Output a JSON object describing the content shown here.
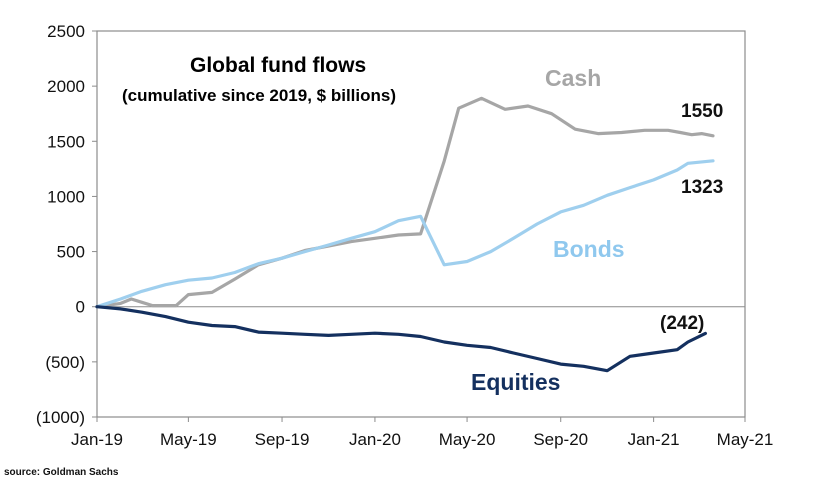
{
  "chart_data": {
    "type": "line",
    "title": "Global fund flows",
    "subtitle": "(cumulative since 2019, $ billions)",
    "source": "source: Goldman Sachs",
    "xlabel": "",
    "ylabel": "",
    "x_range": [
      "2019-01",
      "2021-05"
    ],
    "ylim": [
      -1000,
      2500
    ],
    "y_ticks": [
      2500,
      2000,
      1500,
      1000,
      500,
      0,
      -500,
      -1000
    ],
    "y_tick_labels": [
      "2500",
      "2000",
      "1500",
      "1000",
      "500",
      "0",
      "(500)",
      "(1000)"
    ],
    "x_tick_labels": [
      "Jan-19",
      "May-19",
      "Sep-19",
      "Jan-20",
      "May-20",
      "Sep-20",
      "Jan-21",
      "May-21"
    ],
    "grid": false,
    "legend": "none (series labelled directly on chart)",
    "series": [
      {
        "name": "Cash",
        "color": "#a6a6a6",
        "end_label": "1550",
        "points": [
          [
            "2019-01-01",
            0
          ],
          [
            "2019-02-01",
            30
          ],
          [
            "2019-02-15",
            70
          ],
          [
            "2019-03-01",
            40
          ],
          [
            "2019-03-15",
            10
          ],
          [
            "2019-04-15",
            10
          ],
          [
            "2019-05-01",
            110
          ],
          [
            "2019-06-01",
            130
          ],
          [
            "2019-07-01",
            250
          ],
          [
            "2019-08-01",
            380
          ],
          [
            "2019-09-01",
            440
          ],
          [
            "2019-10-01",
            510
          ],
          [
            "2019-11-01",
            550
          ],
          [
            "2019-12-01",
            590
          ],
          [
            "2020-01-01",
            620
          ],
          [
            "2020-02-01",
            650
          ],
          [
            "2020-03-01",
            660
          ],
          [
            "2020-04-01",
            1320
          ],
          [
            "2020-04-20",
            1800
          ],
          [
            "2020-05-20",
            1890
          ],
          [
            "2020-06-20",
            1790
          ],
          [
            "2020-07-20",
            1820
          ],
          [
            "2020-08-20",
            1750
          ],
          [
            "2020-09-20",
            1610
          ],
          [
            "2020-10-20",
            1570
          ],
          [
            "2020-11-20",
            1580
          ],
          [
            "2020-12-20",
            1600
          ],
          [
            "2021-01-20",
            1600
          ],
          [
            "2021-02-05",
            1580
          ],
          [
            "2021-02-20",
            1560
          ],
          [
            "2021-03-05",
            1570
          ],
          [
            "2021-03-20",
            1550
          ]
        ]
      },
      {
        "name": "Bonds",
        "color": "#9fcfee",
        "end_label": "1323",
        "points": [
          [
            "2019-01-01",
            0
          ],
          [
            "2019-02-01",
            70
          ],
          [
            "2019-03-01",
            140
          ],
          [
            "2019-04-01",
            200
          ],
          [
            "2019-05-01",
            240
          ],
          [
            "2019-06-01",
            260
          ],
          [
            "2019-07-01",
            310
          ],
          [
            "2019-08-01",
            390
          ],
          [
            "2019-09-01",
            440
          ],
          [
            "2019-10-01",
            500
          ],
          [
            "2019-11-01",
            560
          ],
          [
            "2019-12-01",
            620
          ],
          [
            "2020-01-01",
            680
          ],
          [
            "2020-02-01",
            780
          ],
          [
            "2020-03-01",
            820
          ],
          [
            "2020-04-01",
            380
          ],
          [
            "2020-05-01",
            410
          ],
          [
            "2020-06-01",
            500
          ],
          [
            "2020-07-01",
            620
          ],
          [
            "2020-08-01",
            750
          ],
          [
            "2020-09-01",
            860
          ],
          [
            "2020-10-01",
            920
          ],
          [
            "2020-11-01",
            1010
          ],
          [
            "2020-12-01",
            1080
          ],
          [
            "2021-01-01",
            1150
          ],
          [
            "2021-02-01",
            1240
          ],
          [
            "2021-02-15",
            1300
          ],
          [
            "2021-03-20",
            1323
          ]
        ]
      },
      {
        "name": "Equities",
        "color": "#14305f",
        "end_label": "(242)",
        "points": [
          [
            "2019-01-01",
            0
          ],
          [
            "2019-02-01",
            -20
          ],
          [
            "2019-03-01",
            -50
          ],
          [
            "2019-04-01",
            -90
          ],
          [
            "2019-05-01",
            -140
          ],
          [
            "2019-06-01",
            -170
          ],
          [
            "2019-07-01",
            -180
          ],
          [
            "2019-08-01",
            -230
          ],
          [
            "2019-09-01",
            -240
          ],
          [
            "2019-10-01",
            -250
          ],
          [
            "2019-11-01",
            -260
          ],
          [
            "2019-12-01",
            -250
          ],
          [
            "2020-01-01",
            -240
          ],
          [
            "2020-02-01",
            -250
          ],
          [
            "2020-03-01",
            -270
          ],
          [
            "2020-04-01",
            -320
          ],
          [
            "2020-05-01",
            -350
          ],
          [
            "2020-06-01",
            -370
          ],
          [
            "2020-07-01",
            -420
          ],
          [
            "2020-08-01",
            -470
          ],
          [
            "2020-09-01",
            -520
          ],
          [
            "2020-10-01",
            -540
          ],
          [
            "2020-11-01",
            -580
          ],
          [
            "2020-12-01",
            -450
          ],
          [
            "2021-01-01",
            -420
          ],
          [
            "2021-02-01",
            -390
          ],
          [
            "2021-02-15",
            -320
          ],
          [
            "2021-03-10",
            -242
          ]
        ]
      }
    ]
  }
}
